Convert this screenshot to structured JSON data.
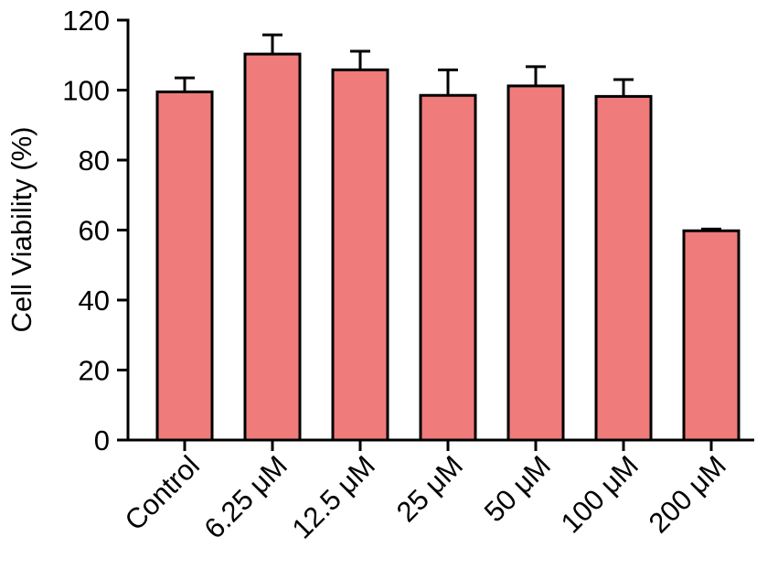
{
  "chart_data": {
    "type": "bar",
    "title": "",
    "xlabel": "",
    "ylabel": "Cell Viability (%)",
    "ylim": [
      0,
      120
    ],
    "yticks": [
      0,
      20,
      40,
      60,
      80,
      100,
      120
    ],
    "ytick_labels": [
      "0",
      "20",
      "40",
      "60",
      "80",
      "100",
      "120"
    ],
    "categories": [
      "Control",
      "6.25 μM",
      "12.5 μM",
      "25 μM",
      "50 μM",
      "100 μM",
      "200 μM"
    ],
    "values": [
      99.5,
      110.3,
      105.8,
      98.5,
      101.2,
      98.2,
      59.8
    ],
    "errors": [
      4.0,
      5.5,
      5.3,
      7.3,
      5.5,
      4.8,
      0.5
    ],
    "bar_color": "#ef7b7b",
    "grid": false,
    "legend": false
  }
}
